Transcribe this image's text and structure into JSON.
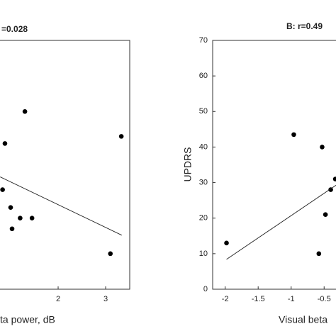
{
  "chart_data": [
    {
      "type": "scatter",
      "title": "=0.028",
      "x_label": "ta power, dB",
      "x": [
        1.3,
        0.88,
        0.83,
        3.33,
        1.0,
        1.03,
        1.2,
        1.45,
        3.1
      ],
      "values": [
        50,
        41,
        28,
        43,
        23,
        17,
        20,
        20,
        10
      ],
      "color": "#000000",
      "fit": {
        "x": [
          0.78,
          3.34
        ],
        "y": [
          31.6,
          15.2
        ]
      },
      "xlim": [
        0.776,
        3.507
      ],
      "ylim": [
        0,
        70
      ],
      "xticks": [
        2,
        3
      ]
    },
    {
      "type": "scatter",
      "title": "B:  r=0.49",
      "x_label": "Visual beta",
      "y_label": "UPDRS",
      "x": [
        -1.98,
        -0.96,
        -0.53,
        -0.4,
        -0.48,
        -0.58,
        -0.33
      ],
      "values": [
        13,
        43.5,
        40,
        28,
        21,
        10,
        31
      ],
      "color": "#000000",
      "fit": {
        "x": [
          -1.98,
          -0.3
        ],
        "y": [
          8.4,
          29.5
        ]
      },
      "xlim": [
        -2.19,
        -0.32
      ],
      "ylim": [
        0,
        70
      ],
      "xticks": [
        -2,
        -1.5,
        -1,
        -0.5
      ],
      "yticks": [
        0,
        10,
        20,
        30,
        40,
        50,
        60,
        70
      ]
    }
  ]
}
